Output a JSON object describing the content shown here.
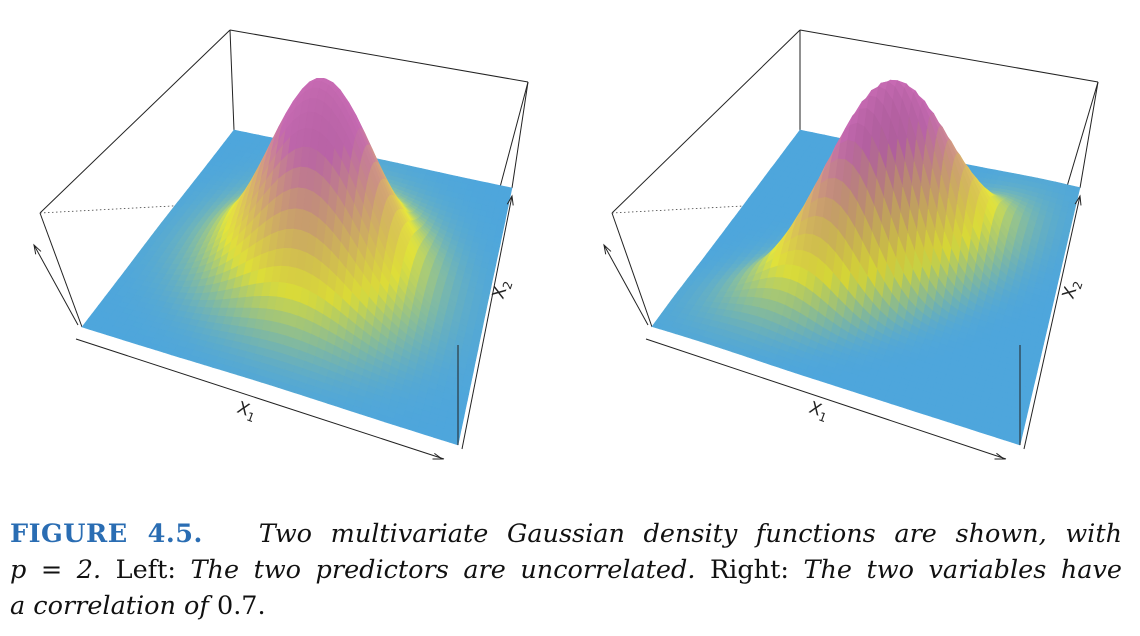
{
  "figure": {
    "panels": [
      {
        "id": "left",
        "xlabel": "X",
        "xlabel_sub": "1",
        "ylabel": "X",
        "ylabel_sub": "2",
        "correlation": 0.0
      },
      {
        "id": "right",
        "xlabel": "X",
        "xlabel_sub": "1",
        "ylabel": "X",
        "ylabel_sub": "2",
        "correlation": 0.7
      }
    ],
    "colors": {
      "low": "#4ea6dc",
      "mid": "#e5e53a",
      "high": "#c66ab2"
    }
  },
  "caption": {
    "label": "FIGURE 4.5.",
    "line1_text": "Two multivariate Gaussian density functions are shown, with",
    "line2_p": "p = 2.",
    "line2_left": "Left:",
    "line2_left_text": "The two predictors are uncorrelated.",
    "line2_right": "Right:",
    "line2_right_text": "The two variables have",
    "line3_text": "a correlation of",
    "line3_value": "0.7."
  }
}
